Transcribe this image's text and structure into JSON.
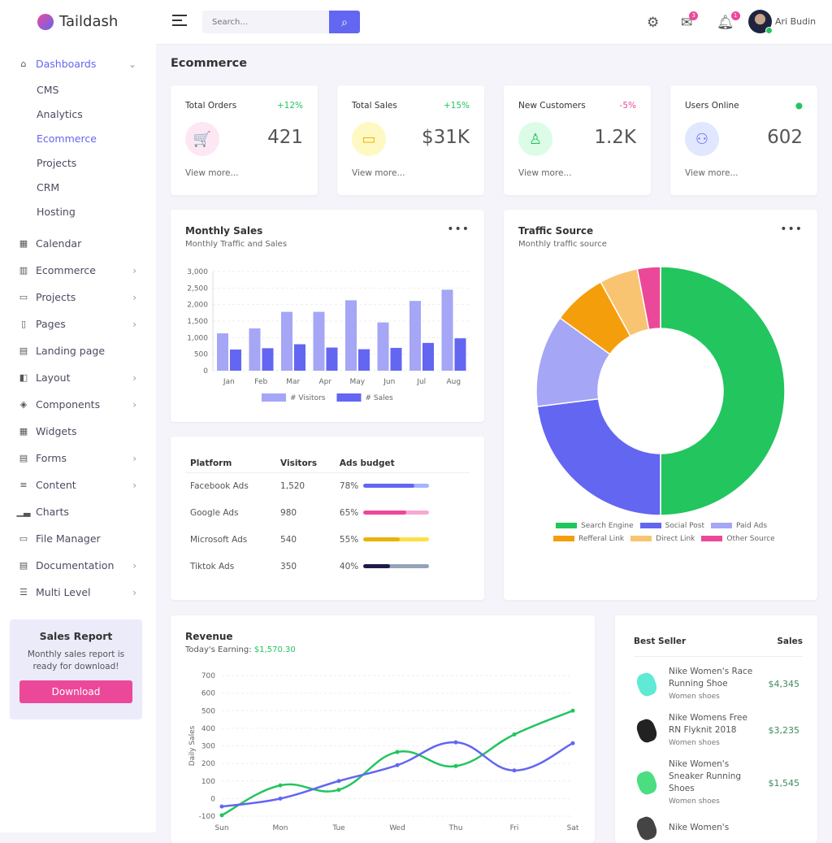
{
  "brand": "Taildash",
  "sidebar": {
    "dashboards": {
      "label": "Dashboards",
      "icon": "home-icon",
      "sub": [
        "CMS",
        "Analytics",
        "Ecommerce",
        "Projects",
        "CRM",
        "Hosting"
      ],
      "active_sub": "Ecommerce"
    },
    "items": [
      {
        "label": "Calendar",
        "icon": "calendar-icon",
        "chevron": false
      },
      {
        "label": "Ecommerce",
        "icon": "store-icon",
        "chevron": true
      },
      {
        "label": "Projects",
        "icon": "briefcase-icon",
        "chevron": true
      },
      {
        "label": "Pages",
        "icon": "file-icon",
        "chevron": true
      },
      {
        "label": "Landing page",
        "icon": "layout-icon",
        "chevron": false
      },
      {
        "label": "Layout",
        "icon": "sidebar-icon",
        "chevron": true
      },
      {
        "label": "Components",
        "icon": "layers-icon",
        "chevron": true
      },
      {
        "label": "Widgets",
        "icon": "grid-icon",
        "chevron": false
      },
      {
        "label": "Forms",
        "icon": "form-icon",
        "chevron": true
      },
      {
        "label": "Content",
        "icon": "list-icon",
        "chevron": true
      },
      {
        "label": "Charts",
        "icon": "bar-chart-icon",
        "chevron": false
      },
      {
        "label": "File Manager",
        "icon": "folder-icon",
        "chevron": false
      },
      {
        "label": "Documentation",
        "icon": "document-icon",
        "chevron": true
      },
      {
        "label": "Multi Level",
        "icon": "multilevel-icon",
        "chevron": true
      }
    ],
    "report": {
      "title": "Sales Report",
      "text": "Monthly sales report is ready for download!",
      "button": "Download"
    }
  },
  "header": {
    "search_placeholder": "Search...",
    "mail_count": "3",
    "notif_count": "1",
    "user": "Ari Budin"
  },
  "page_title": "Ecommerce",
  "stats": [
    {
      "label": "Total Orders",
      "change": "+12%",
      "change_color": "#22c55e",
      "value": "421",
      "more": "View more...",
      "icon": "cart-icon",
      "bg": "#fce7f3",
      "fg": "#ec4899",
      "glyph": "🛒"
    },
    {
      "label": "Total Sales",
      "change": "+15%",
      "change_color": "#22c55e",
      "value": "$31K",
      "more": "View more...",
      "icon": "credit-card-icon",
      "bg": "#fef9c3",
      "fg": "#eab308",
      "glyph": "▭"
    },
    {
      "label": "New Customers",
      "change": "-5%",
      "change_color": "#ec4899",
      "value": "1.2K",
      "more": "View more...",
      "icon": "user-icon",
      "bg": "#dcfce7",
      "fg": "#22c55e",
      "glyph": "♙"
    },
    {
      "label": "Users Online",
      "change": "●",
      "change_color": "#22c55e",
      "value": "602",
      "more": "View more...",
      "icon": "users-icon",
      "bg": "#e0e7ff",
      "fg": "#6366f1",
      "glyph": "⚇"
    }
  ],
  "monthly": {
    "title": "Monthly Sales",
    "subtitle": "Monthly Traffic and Sales"
  },
  "traffic": {
    "title": "Traffic Source",
    "subtitle": "Monthly traffic source"
  },
  "platforms": {
    "headers": [
      "Platform",
      "Visitors",
      "Ads budget"
    ],
    "rows": [
      {
        "name": "Facebook Ads",
        "visitors": "1,520",
        "budget": "78%",
        "pct": 78,
        "color": "#6366f1",
        "track": "#a5b4fc"
      },
      {
        "name": "Google Ads",
        "visitors": "980",
        "budget": "65%",
        "pct": 65,
        "color": "#ec4899",
        "track": "#f9a8d4"
      },
      {
        "name": "Microsoft Ads",
        "visitors": "540",
        "budget": "55%",
        "pct": 55,
        "color": "#eab308",
        "track": "#fde047"
      },
      {
        "name": "Tiktok Ads",
        "visitors": "350",
        "budget": "40%",
        "pct": 40,
        "color": "#1e1b4b",
        "track": "#94a3b8"
      }
    ]
  },
  "revenue": {
    "title": "Revenue",
    "earning_label": "Today's Earning:",
    "earning_value": "$1,570.30"
  },
  "best_seller": {
    "headers": [
      "Best Seller",
      "Sales"
    ],
    "items": [
      {
        "name": "Nike Women's Race Running Shoe",
        "category": "Women shoes",
        "price": "$4,345",
        "color": "#5eead4"
      },
      {
        "name": "Nike Womens Free RN Flyknit 2018",
        "category": "Women shoes",
        "price": "$3,235",
        "color": "#222"
      },
      {
        "name": "Nike Women's Sneaker Running Shoes",
        "category": "Women shoes",
        "price": "$1,545",
        "color": "#4ade80"
      },
      {
        "name": "Nike Women's",
        "category": "",
        "price": "",
        "color": "#444"
      }
    ]
  },
  "chart_data": [
    {
      "type": "bar",
      "title": "",
      "categories": [
        "Jan",
        "Feb",
        "Mar",
        "Apr",
        "May",
        "Jun",
        "Jul",
        "Aug"
      ],
      "series": [
        {
          "name": "# Visitors",
          "color": "#a5a6f6",
          "values": [
            1130,
            1280,
            1780,
            1780,
            2130,
            1460,
            2110,
            2450
          ]
        },
        {
          "name": "# Sales",
          "color": "#6366f1",
          "values": [
            640,
            680,
            800,
            700,
            650,
            690,
            840,
            980
          ]
        }
      ],
      "ylim": [
        0,
        3000
      ],
      "yticks": [
        "0",
        "500",
        "1,000",
        "1,500",
        "2,000",
        "2,500",
        "3,000"
      ],
      "grid": true,
      "legend": "bottom"
    },
    {
      "type": "pie",
      "donut": true,
      "slices": [
        {
          "name": "Search Engine",
          "value": 50,
          "color": "#22c55e"
        },
        {
          "name": "Social Post",
          "value": 23,
          "color": "#6366f1"
        },
        {
          "name": "Paid Ads",
          "value": 12,
          "color": "#a5a6f6"
        },
        {
          "name": "Refferal Link",
          "value": 7,
          "color": "#f59e0b"
        },
        {
          "name": "Direct Link",
          "value": 5,
          "color": "#f8c471"
        },
        {
          "name": "Other Source",
          "value": 3,
          "color": "#ec4899"
        }
      ],
      "legend": "bottom"
    },
    {
      "type": "line",
      "ylabel": "Daily Sales",
      "categories": [
        "Sun",
        "Mon",
        "Tue",
        "Wed",
        "Thu",
        "Fri",
        "Sat"
      ],
      "series": [
        {
          "color": "#22c55e",
          "values": [
            -95,
            75,
            50,
            265,
            185,
            365,
            500
          ]
        },
        {
          "color": "#6366f1",
          "values": [
            -45,
            0,
            100,
            190,
            320,
            160,
            315
          ]
        }
      ],
      "ylim": [
        -100,
        700
      ],
      "yticks": [
        "-100",
        "0",
        "100",
        "200",
        "300",
        "400",
        "500",
        "600",
        "700"
      ],
      "grid": true
    }
  ]
}
